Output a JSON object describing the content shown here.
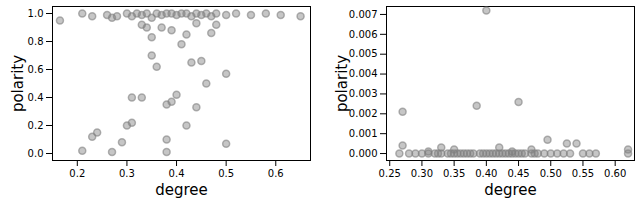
{
  "chart_data": [
    {
      "type": "scatter",
      "xlabel": "degree",
      "ylabel": "polarity",
      "color": "#808080",
      "marker": "o",
      "xlim": [
        0.15,
        0.67
      ],
      "ylim": [
        -0.05,
        1.05
      ],
      "xticks": [
        0.2,
        0.3,
        0.4,
        0.5,
        0.6
      ],
      "yticks": [
        {
          "value": 0,
          "label": "0.0"
        },
        0.2,
        0.4,
        0.6,
        0.8,
        {
          "value": 1,
          "label": "1.0"
        }
      ],
      "x": [
        0.165,
        0.21,
        0.23,
        0.26,
        0.27,
        0.28,
        0.3,
        0.31,
        0.32,
        0.33,
        0.34,
        0.35,
        0.36,
        0.37,
        0.38,
        0.39,
        0.4,
        0.41,
        0.42,
        0.43,
        0.44,
        0.45,
        0.46,
        0.47,
        0.48,
        0.5,
        0.52,
        0.55,
        0.58,
        0.61,
        0.65,
        0.21,
        0.23,
        0.24,
        0.27,
        0.29,
        0.3,
        0.31,
        0.31,
        0.33,
        0.33,
        0.34,
        0.35,
        0.35,
        0.36,
        0.38,
        0.38,
        0.38,
        0.39,
        0.4,
        0.41,
        0.42,
        0.42,
        0.43,
        0.44,
        0.45,
        0.46,
        0.47,
        0.48,
        0.5,
        0.5,
        0.44,
        0.37,
        0.39
      ],
      "values": [
        0.95,
        1.0,
        0.98,
        0.99,
        0.97,
        0.98,
        1.0,
        0.98,
        1.0,
        0.99,
        1.0,
        0.97,
        1.0,
        0.99,
        1.0,
        1.0,
        0.99,
        1.0,
        1.0,
        0.98,
        1.0,
        0.99,
        1.0,
        0.98,
        1.0,
        0.99,
        1.0,
        0.99,
        1.0,
        0.99,
        0.98,
        0.02,
        0.12,
        0.15,
        0.01,
        0.08,
        0.2,
        0.22,
        0.4,
        0.4,
        0.92,
        0.9,
        0.83,
        0.7,
        0.62,
        0.35,
        0.01,
        0.1,
        0.37,
        0.42,
        0.78,
        0.85,
        0.2,
        0.65,
        0.33,
        0.66,
        0.5,
        0.86,
        0.92,
        0.57,
        0.07,
        0.93,
        0.9,
        0.88
      ]
    },
    {
      "type": "scatter",
      "xlabel": "degree",
      "ylabel": "polarity",
      "color": "#808080",
      "marker": "o",
      "xlim": [
        0.245,
        0.63
      ],
      "ylim": [
        -0.00035,
        0.0074
      ],
      "xticks": [
        {
          "value": 0.25,
          "label": "0.25"
        },
        {
          "value": 0.3,
          "label": "0.30"
        },
        {
          "value": 0.35,
          "label": "0.35"
        },
        {
          "value": 0.4,
          "label": "0.40"
        },
        {
          "value": 0.45,
          "label": "0.45"
        },
        {
          "value": 0.5,
          "label": "0.50"
        },
        {
          "value": 0.55,
          "label": "0.55"
        },
        {
          "value": 0.6,
          "label": "0.60"
        }
      ],
      "yticks": [
        {
          "value": 0,
          "label": "0.000"
        },
        {
          "value": 0.001,
          "label": "0.001"
        },
        {
          "value": 0.002,
          "label": "0.002"
        },
        {
          "value": 0.003,
          "label": "0.003"
        },
        {
          "value": 0.004,
          "label": "0.004"
        },
        {
          "value": 0.005,
          "label": "0.005"
        },
        {
          "value": 0.006,
          "label": "0.006"
        },
        {
          "value": 0.007,
          "label": "0.007"
        }
      ],
      "x": [
        0.27,
        0.27,
        0.385,
        0.4,
        0.45,
        0.495,
        0.525,
        0.54,
        0.62,
        0.33,
        0.35,
        0.42,
        0.47,
        0.31,
        0.44,
        0.265,
        0.28,
        0.29,
        0.3,
        0.31,
        0.32,
        0.325,
        0.33,
        0.34,
        0.345,
        0.35,
        0.355,
        0.36,
        0.365,
        0.37,
        0.375,
        0.38,
        0.39,
        0.395,
        0.4,
        0.405,
        0.41,
        0.415,
        0.42,
        0.425,
        0.43,
        0.435,
        0.44,
        0.445,
        0.45,
        0.455,
        0.46,
        0.47,
        0.475,
        0.48,
        0.49,
        0.5,
        0.51,
        0.52,
        0.53,
        0.55,
        0.56,
        0.57,
        0.62
      ],
      "values": [
        0.0021,
        0.0004,
        0.0024,
        0.0072,
        0.0026,
        0.0007,
        0.0005,
        0.0005,
        0.0002,
        0.0003,
        0.0002,
        0.0003,
        0.0002,
        0.0001,
        0.0001,
        0,
        0,
        0,
        0,
        0,
        0,
        0,
        0,
        0,
        0,
        0,
        0,
        0,
        0,
        0,
        0,
        0,
        0,
        0,
        0,
        0,
        0,
        0,
        0,
        0,
        0,
        0,
        0,
        0,
        0,
        0,
        0,
        0,
        0,
        0,
        0,
        0,
        0,
        0,
        0,
        0,
        0,
        0,
        0
      ]
    }
  ]
}
